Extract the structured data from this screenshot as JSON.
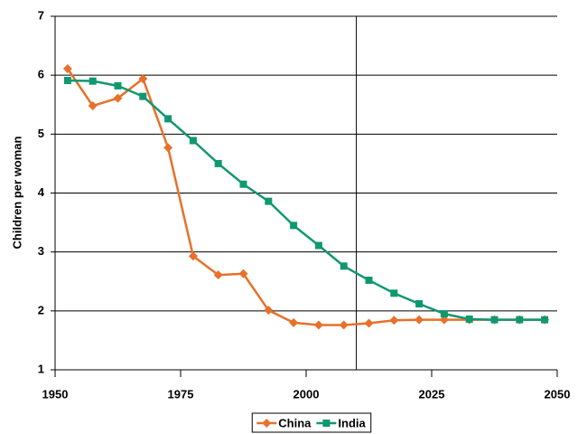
{
  "chart_data": {
    "type": "line",
    "y_label": "Children per woman",
    "x": [
      1952.5,
      1957.5,
      1962.5,
      1967.5,
      1972.5,
      1977.5,
      1982.5,
      1987.5,
      1992.5,
      1997.5,
      2002.5,
      2007.5,
      2012.5,
      2017.5,
      2022.5,
      2027.5,
      2032.5,
      2037.5,
      2042.5,
      2047.5
    ],
    "series": [
      {
        "name": "China",
        "color": "#e8702a",
        "marker": "diamond",
        "values": [
          6.11,
          5.48,
          5.61,
          5.94,
          4.77,
          2.93,
          2.61,
          2.63,
          2.01,
          1.8,
          1.76,
          1.76,
          1.79,
          1.84,
          1.85,
          1.85,
          1.85,
          1.85,
          1.85,
          1.85
        ]
      },
      {
        "name": "India",
        "color": "#109870",
        "marker": "square",
        "values": [
          5.91,
          5.9,
          5.82,
          5.64,
          5.26,
          4.89,
          4.5,
          4.15,
          3.86,
          3.45,
          3.11,
          2.76,
          2.52,
          2.3,
          2.12,
          1.95,
          1.86,
          1.85,
          1.85,
          1.85
        ]
      }
    ],
    "xlim": [
      1950,
      2050
    ],
    "xticks": [
      1950,
      1975,
      2000,
      2025,
      2050
    ],
    "ylim": [
      1,
      7
    ],
    "yticks": [
      1,
      2,
      3,
      4,
      5,
      6,
      7
    ],
    "reference_x": 2010,
    "grid": true,
    "legend": "bottom"
  }
}
